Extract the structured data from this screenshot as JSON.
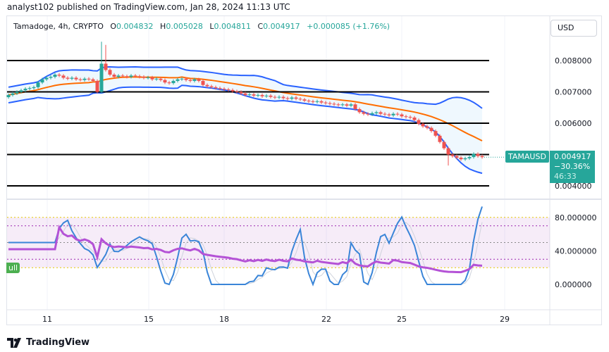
{
  "header": {
    "published": "analyst102 published on TradingView.com, Jan 28, 2024 11:13 UTC"
  },
  "legend": {
    "symbol": "Tamadoge, 4h, CRYPTO",
    "o_label": "O",
    "o": "0.004832",
    "h_label": "H",
    "h": "0.005028",
    "l_label": "L",
    "l": "0.004811",
    "c_label": "C",
    "c": "0.004917",
    "change": "+0.000085 (+1.76%)"
  },
  "currency": "USD",
  "price_tag": {
    "symbol": "TAMAUSD",
    "price": "0.004917",
    "change_pct": "−30.36%",
    "countdown": "46:33"
  },
  "rsi_label": "ull",
  "footer": {
    "brand": "TradingView"
  },
  "colors": {
    "up": "#26a69a",
    "down": "#ef5350",
    "bands": "#2962ff",
    "basis": "#ff6d00",
    "rsi": "#b452d6",
    "stoch": "#3a85d8"
  },
  "chart_data": [
    {
      "type": "candlestick",
      "price_ticks": [
        "0.008000",
        "0.007000",
        "0.006000",
        "0.004000"
      ],
      "price_tick_values": [
        0.008,
        0.007,
        0.006,
        0.004
      ],
      "ylim": [
        0.004,
        0.008
      ],
      "horizontal_levels": [
        0.008,
        0.007,
        0.006,
        0.005,
        0.004
      ],
      "date_ticks": [
        "11",
        "15",
        "18",
        "22",
        "25",
        "29"
      ],
      "close": [
        0.0069,
        0.00695,
        0.007,
        0.00705,
        0.0071,
        0.00712,
        0.00715,
        0.0073,
        0.0074,
        0.00745,
        0.00748,
        0.00755,
        0.00752,
        0.00745,
        0.00742,
        0.00745,
        0.0074,
        0.00738,
        0.00742,
        0.0074,
        0.00735,
        0.007,
        0.0079,
        0.0077,
        0.00755,
        0.00748,
        0.00752,
        0.0075,
        0.00748,
        0.00752,
        0.0075,
        0.00748,
        0.00745,
        0.00746,
        0.0074,
        0.00742,
        0.00738,
        0.0073,
        0.00728,
        0.00735,
        0.0074,
        0.00742,
        0.00738,
        0.00735,
        0.0074,
        0.00735,
        0.00722,
        0.00718,
        0.00715,
        0.00712,
        0.0071,
        0.00708,
        0.00706,
        0.00702,
        0.007,
        0.00695,
        0.0069,
        0.00692,
        0.00688,
        0.0069,
        0.00686,
        0.00688,
        0.00684,
        0.00682,
        0.00684,
        0.0068,
        0.00678,
        0.00682,
        0.00678,
        0.00676,
        0.00672,
        0.0067,
        0.00668,
        0.0067,
        0.00666,
        0.00664,
        0.00662,
        0.0066,
        0.00658,
        0.0066,
        0.00656,
        0.0066,
        0.00645,
        0.00635,
        0.0063,
        0.00628,
        0.00632,
        0.00635,
        0.0063,
        0.00628,
        0.00625,
        0.0063,
        0.00628,
        0.00622,
        0.0062,
        0.00618,
        0.0061,
        0.00598,
        0.0059,
        0.00585,
        0.00575,
        0.0056,
        0.0054,
        0.0052,
        0.005,
        0.00495,
        0.0049,
        0.00485,
        0.00488,
        0.00492,
        0.00502,
        0.00495,
        0.004917
      ]
    },
    {
      "type": "line",
      "indicator_ticks": [
        "80.000000",
        "40.000000",
        "0.000000"
      ],
      "indicator_tick_values": [
        80,
        40,
        0
      ],
      "ylim": [
        0,
        100
      ]
    }
  ]
}
